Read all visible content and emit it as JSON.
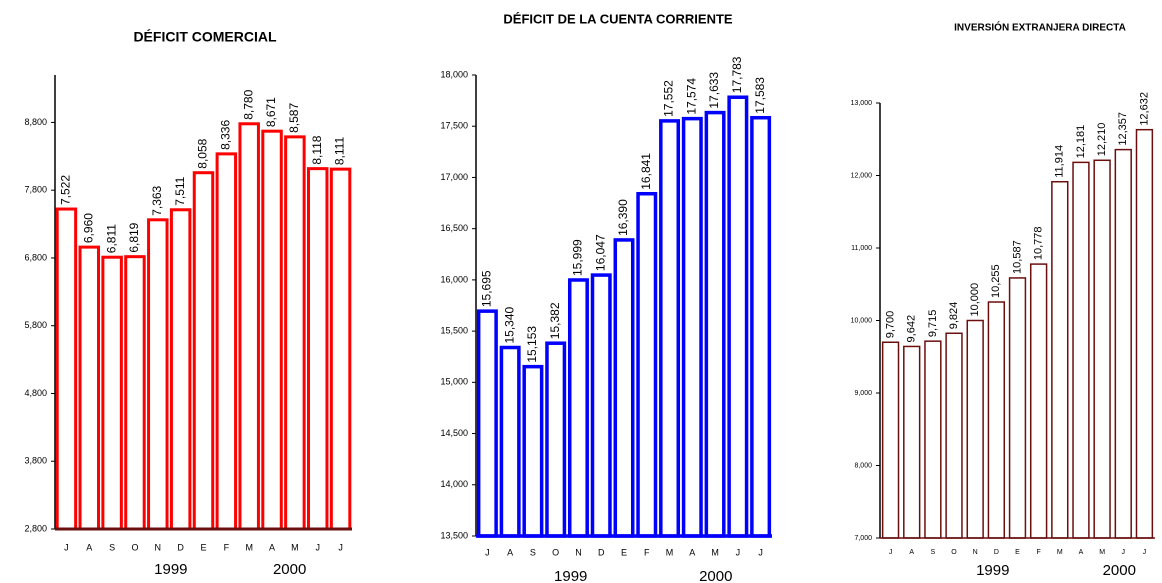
{
  "chart_data": [
    {
      "type": "bar",
      "title": "DÉFICIT COMERCIAL",
      "color": "#ff0000",
      "categories": [
        "J",
        "A",
        "S",
        "O",
        "N",
        "D",
        "E",
        "F",
        "M",
        "A",
        "M",
        "J",
        "J"
      ],
      "values": [
        7522,
        6960,
        6811,
        6819,
        7363,
        7511,
        8058,
        8336,
        8780,
        8671,
        8587,
        8118,
        8111
      ],
      "value_labels": [
        "7,522",
        "6,960",
        "6,811",
        "6,819",
        "7,363",
        "7,511",
        "8,058",
        "8,336",
        "8,780",
        "8,671",
        "8,587",
        "8,118",
        "8,111"
      ],
      "ylim": [
        2800,
        9500
      ],
      "yticks": [
        {
          "value": 2800,
          "label": "2,800"
        },
        {
          "value": 3800,
          "label": "3,800"
        },
        {
          "value": 4800,
          "label": "4,800"
        },
        {
          "value": 5800,
          "label": "5,800"
        },
        {
          "value": 6800,
          "label": "6,800"
        },
        {
          "value": 7800,
          "label": "7,800"
        },
        {
          "value": 8800,
          "label": "8,800"
        }
      ],
      "year_labels": [
        "1999",
        "2000"
      ]
    },
    {
      "type": "bar",
      "title": "DÉFICIT DE LA CUENTA CORRIENTE",
      "color": "#0000ff",
      "categories": [
        "J",
        "A",
        "S",
        "O",
        "N",
        "D",
        "E",
        "F",
        "M",
        "A",
        "M",
        "J",
        "J"
      ],
      "values": [
        15695,
        15340,
        15153,
        15382,
        15999,
        16047,
        16390,
        16841,
        17552,
        17574,
        17633,
        17783,
        17583
      ],
      "value_labels": [
        "15,695",
        "15,340",
        "15,153",
        "15,382",
        "15,999",
        "16,047",
        "16,390",
        "16,841",
        "17,552",
        "17,574",
        "17,633",
        "17,783",
        "17,583"
      ],
      "ylim": [
        13500,
        18000
      ],
      "yticks": [
        {
          "value": 13500,
          "label": "13,500"
        },
        {
          "value": 14000,
          "label": "14,000"
        },
        {
          "value": 14500,
          "label": "14,500"
        },
        {
          "value": 15000,
          "label": "15,000"
        },
        {
          "value": 15500,
          "label": "15,500"
        },
        {
          "value": 16000,
          "label": "16,000"
        },
        {
          "value": 16500,
          "label": "16,500"
        },
        {
          "value": 17000,
          "label": "17,000"
        },
        {
          "value": 17500,
          "label": "17,500"
        },
        {
          "value": 18000,
          "label": "18,000"
        }
      ],
      "year_labels": [
        "1999",
        "2000"
      ]
    },
    {
      "type": "bar",
      "title": "INVERSIÓN EXTRANJERA DIRECTA",
      "color": "#6b0e0e",
      "categories": [
        "J",
        "A",
        "S",
        "O",
        "N",
        "D",
        "E",
        "F",
        "M",
        "A",
        "M",
        "J",
        "J"
      ],
      "values": [
        9700,
        9642,
        9715,
        9824,
        10000,
        10255,
        10587,
        10778,
        11914,
        12181,
        12210,
        12357,
        12632
      ],
      "value_labels": [
        "9,700",
        "9,642",
        "9,715",
        "9,824",
        "10,000",
        "10,255",
        "10,587",
        "10,778",
        "11,914",
        "12,181",
        "12,210",
        "12,357",
        "12,632"
      ],
      "ylim": [
        7000,
        13000
      ],
      "yticks": [
        {
          "value": 7000,
          "label": "7,000"
        },
        {
          "value": 8000,
          "label": "8,000"
        },
        {
          "value": 9000,
          "label": "9,000"
        },
        {
          "value": 10000,
          "label": "10,000"
        },
        {
          "value": 11000,
          "label": "11,000"
        },
        {
          "value": 12000,
          "label": "12,000"
        },
        {
          "value": 13000,
          "label": "13,000"
        }
      ],
      "year_labels": [
        "1999",
        "2000"
      ]
    }
  ]
}
